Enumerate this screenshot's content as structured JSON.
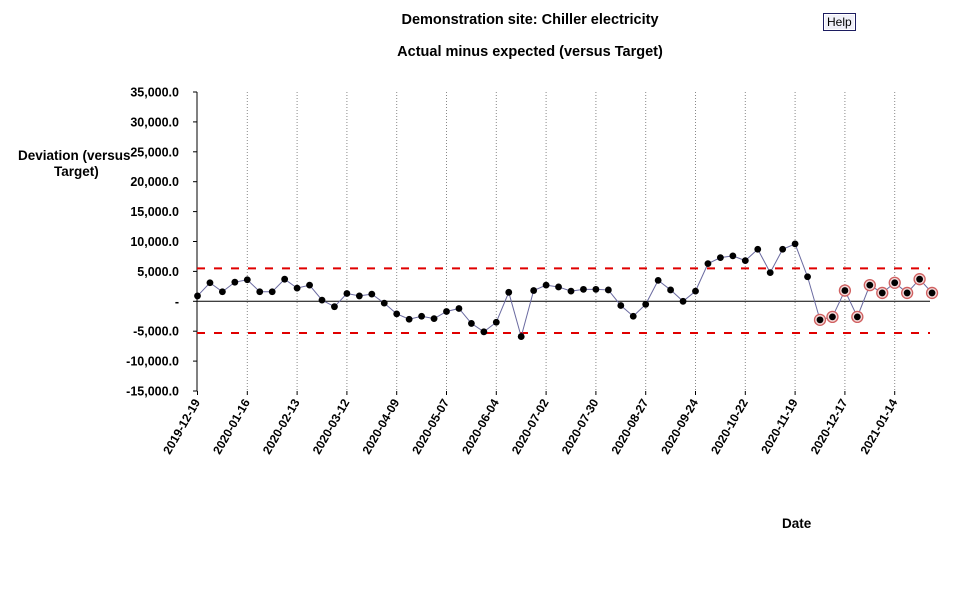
{
  "header": {
    "title": "Demonstration site: Chiller electricity",
    "subtitle": "Actual minus expected (versus Target)",
    "help_label": "Help"
  },
  "chart_data": {
    "type": "line",
    "title": "Demonstration site: Chiller electricity",
    "subtitle": "Actual minus expected (versus Target)",
    "ylabel_line1": "Deviation (versus",
    "ylabel_line2": "Target)",
    "xlabel": "Date",
    "ylim": [
      -15000,
      35000
    ],
    "y_ticks": [
      {
        "value": 35000,
        "label": "35,000.0"
      },
      {
        "value": 30000,
        "label": "30,000.0"
      },
      {
        "value": 25000,
        "label": "25,000.0"
      },
      {
        "value": 20000,
        "label": "20,000.0"
      },
      {
        "value": 15000,
        "label": "15,000.0"
      },
      {
        "value": 10000,
        "label": "10,000.0"
      },
      {
        "value": 5000,
        "label": "5,000.0"
      },
      {
        "value": 0,
        "label": "-"
      },
      {
        "value": -5000,
        "label": "-5,000.0"
      },
      {
        "value": -10000,
        "label": "-10,000.0"
      },
      {
        "value": -15000,
        "label": "-15,000.0"
      }
    ],
    "x_ticks": [
      "2019-12-19",
      "2020-01-16",
      "2020-02-13",
      "2020-03-12",
      "2020-04-09",
      "2020-05-07",
      "2020-06-04",
      "2020-07-02",
      "2020-07-30",
      "2020-08-27",
      "2020-09-24",
      "2020-10-22",
      "2020-11-19",
      "2020-12-17",
      "2021-01-14"
    ],
    "control_limits": {
      "upper": 5500,
      "lower": -5300,
      "color": "#e00000"
    },
    "zero_line": 0,
    "grid": "vertical dotted at each x tick",
    "legend": "none",
    "series": [
      {
        "line_color": "#6a6aa0",
        "marker_color": "#000000",
        "highlight_color": "#d06060",
        "points": [
          {
            "x": "2019-12-19",
            "y": 900
          },
          {
            "x": "2019-12-26",
            "y": 3100
          },
          {
            "x": "2020-01-02",
            "y": 1600
          },
          {
            "x": "2020-01-09",
            "y": 3200
          },
          {
            "x": "2020-01-16",
            "y": 3600
          },
          {
            "x": "2020-01-23",
            "y": 1600
          },
          {
            "x": "2020-01-30",
            "y": 1600
          },
          {
            "x": "2020-02-06",
            "y": 3700
          },
          {
            "x": "2020-02-13",
            "y": 2200
          },
          {
            "x": "2020-02-20",
            "y": 2700
          },
          {
            "x": "2020-02-27",
            "y": 200
          },
          {
            "x": "2020-03-05",
            "y": -900
          },
          {
            "x": "2020-03-12",
            "y": 1300
          },
          {
            "x": "2020-03-19",
            "y": 900
          },
          {
            "x": "2020-03-26",
            "y": 1200
          },
          {
            "x": "2020-04-02",
            "y": -300
          },
          {
            "x": "2020-04-09",
            "y": -2100
          },
          {
            "x": "2020-04-16",
            "y": -3000
          },
          {
            "x": "2020-04-23",
            "y": -2500
          },
          {
            "x": "2020-04-30",
            "y": -2900
          },
          {
            "x": "2020-05-07",
            "y": -1700
          },
          {
            "x": "2020-05-14",
            "y": -1200
          },
          {
            "x": "2020-05-21",
            "y": -3700
          },
          {
            "x": "2020-05-28",
            "y": -5100
          },
          {
            "x": "2020-06-04",
            "y": -3500
          },
          {
            "x": "2020-06-11",
            "y": 1500
          },
          {
            "x": "2020-06-18",
            "y": -5900
          },
          {
            "x": "2020-06-25",
            "y": 1800
          },
          {
            "x": "2020-07-02",
            "y": 2700
          },
          {
            "x": "2020-07-09",
            "y": 2400
          },
          {
            "x": "2020-07-16",
            "y": 1700
          },
          {
            "x": "2020-07-23",
            "y": 2000
          },
          {
            "x": "2020-07-30",
            "y": 2000
          },
          {
            "x": "2020-08-06",
            "y": 1900
          },
          {
            "x": "2020-08-13",
            "y": -700
          },
          {
            "x": "2020-08-20",
            "y": -2500
          },
          {
            "x": "2020-08-27",
            "y": -500
          },
          {
            "x": "2020-09-03",
            "y": 3500
          },
          {
            "x": "2020-09-10",
            "y": 1900
          },
          {
            "x": "2020-09-17",
            "y": 0
          },
          {
            "x": "2020-09-24",
            "y": 1700
          },
          {
            "x": "2020-10-01",
            "y": 6300
          },
          {
            "x": "2020-10-08",
            "y": 7300
          },
          {
            "x": "2020-10-15",
            "y": 7600
          },
          {
            "x": "2020-10-22",
            "y": 6800
          },
          {
            "x": "2020-10-29",
            "y": 8700
          },
          {
            "x": "2020-11-05",
            "y": 4800
          },
          {
            "x": "2020-11-12",
            "y": 8700
          },
          {
            "x": "2020-11-19",
            "y": 9600
          },
          {
            "x": "2020-11-26",
            "y": 4100
          },
          {
            "x": "2020-12-03",
            "y": -3100,
            "highlight": true
          },
          {
            "x": "2020-12-10",
            "y": -2600,
            "highlight": true
          },
          {
            "x": "2020-12-17",
            "y": 1800,
            "highlight": true
          },
          {
            "x": "2020-12-24",
            "y": -2600,
            "highlight": true
          },
          {
            "x": "2020-12-31",
            "y": 2700,
            "highlight": true
          },
          {
            "x": "2021-01-07",
            "y": 1400,
            "highlight": true
          },
          {
            "x": "2021-01-14",
            "y": 3100,
            "highlight": true
          },
          {
            "x": "2021-01-21",
            "y": 1400,
            "highlight": true
          },
          {
            "x": "2021-01-28",
            "y": 3700,
            "highlight": true
          },
          {
            "x": "2021-02-04",
            "y": 1400,
            "highlight": true
          }
        ]
      }
    ]
  }
}
